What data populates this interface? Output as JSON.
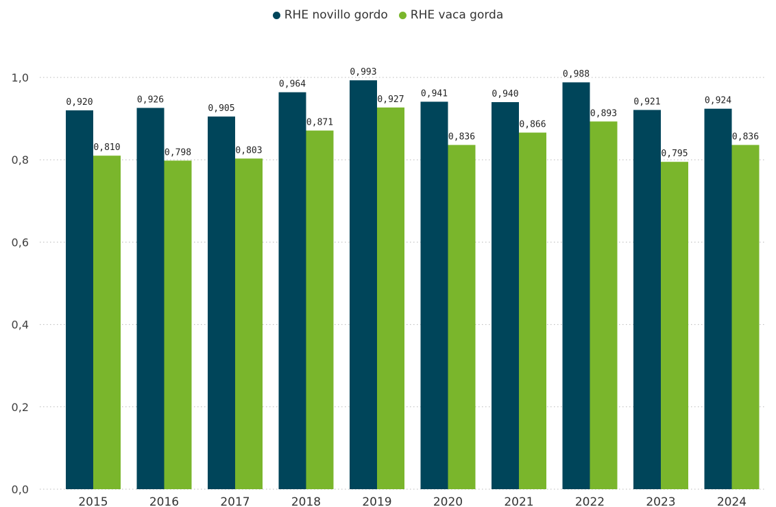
{
  "chart_data": {
    "type": "bar",
    "categories": [
      "2015",
      "2016",
      "2017",
      "2018",
      "2019",
      "2020",
      "2021",
      "2022",
      "2023",
      "2024"
    ],
    "series": [
      {
        "name": "RHE novillo gordo",
        "color": "#00455a",
        "values": [
          0.92,
          0.926,
          0.905,
          0.964,
          0.993,
          0.941,
          0.94,
          0.988,
          0.921,
          0.924
        ],
        "labels": [
          "0,920",
          "0,926",
          "0,905",
          "0,964",
          "0,993",
          "0,941",
          "0,940",
          "0,988",
          "0,921",
          "0,924"
        ]
      },
      {
        "name": "RHE vaca gorda",
        "color": "#7ab62c",
        "values": [
          0.81,
          0.798,
          0.803,
          0.871,
          0.927,
          0.836,
          0.866,
          0.893,
          0.795,
          0.836
        ],
        "labels": [
          "0,810",
          "0,798",
          "0,803",
          "0,871",
          "0,927",
          "0,836",
          "0,866",
          "0,893",
          "0,795",
          "0,836"
        ]
      }
    ],
    "yticks": [
      0,
      0.2,
      0.4,
      0.6,
      0.8,
      1.0
    ],
    "ytick_labels": [
      "0,0",
      "0,2",
      "0,4",
      "0,6",
      "0,8",
      "1,0"
    ],
    "ylim": [
      0,
      1.0
    ],
    "title": "",
    "xlabel": "",
    "ylabel": "",
    "grid": "horizontal dotted",
    "legend_position": "top-center"
  }
}
